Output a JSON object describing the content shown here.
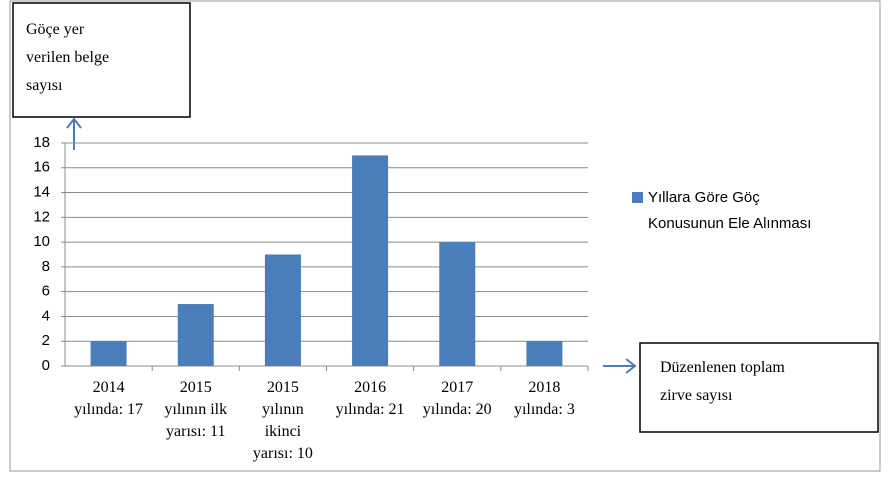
{
  "chart_data": {
    "type": "bar",
    "categories": [
      "2014\nyılında: 17",
      "2015\nyılının ilk\nyarısı: 11",
      "2015\nyılının\nikinci\nyarısı: 10",
      "2016\nyılında: 21",
      "2017\nyılında: 20",
      "2018\nyılında: 3"
    ],
    "series": [
      {
        "name": "Yıllara Göre Göç\nKonusunun Ele Alınması",
        "color": "#4a7ebb",
        "values": [
          2,
          5,
          9,
          17,
          10,
          2
        ]
      }
    ],
    "ylim": [
      0,
      18
    ],
    "yticks": [
      0,
      2,
      4,
      6,
      8,
      10,
      12,
      14,
      16,
      18
    ],
    "grid": true,
    "y_annotation": "Göçe yer\nverilen belge\nsayısı",
    "x_annotation": "Düzenlenen toplam\nzirve sayısı"
  }
}
